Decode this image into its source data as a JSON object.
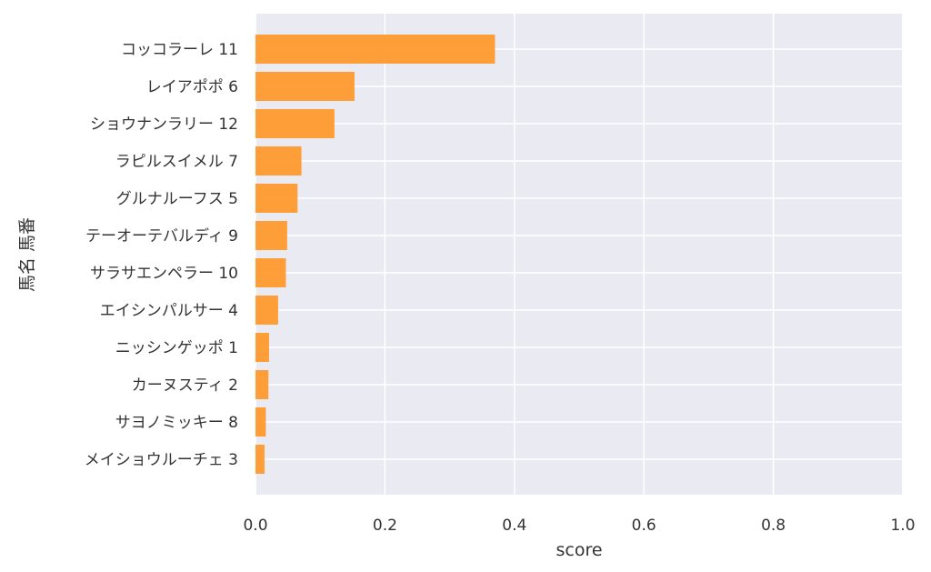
{
  "chart_data": {
    "type": "bar",
    "orientation": "horizontal",
    "xlabel": "score",
    "ylabel": "馬名 馬番",
    "xlim": [
      0,
      1
    ],
    "x_ticks": [
      "0.0",
      "0.2",
      "0.4",
      "0.6",
      "0.8",
      "1.0"
    ],
    "grid": true,
    "bar_color": "#ff9a2e",
    "background_color": "#eaeaf2",
    "categories": [
      "コッコラーレ 11",
      "レイアポポ 6",
      "ショウナンラリー 12",
      "ラピルスイメル 7",
      "グルナルーフス 5",
      "テーオーテバルディ 9",
      "サラサエンペラー 10",
      "エイシンパルサー 4",
      "ニッシンゲッポ 1",
      "カーヌスティ 2",
      "サヨノミッキー 8",
      "メイショウルーチェ 3"
    ],
    "values": [
      0.37,
      0.153,
      0.122,
      0.071,
      0.065,
      0.049,
      0.047,
      0.035,
      0.021,
      0.02,
      0.016,
      0.014
    ]
  }
}
